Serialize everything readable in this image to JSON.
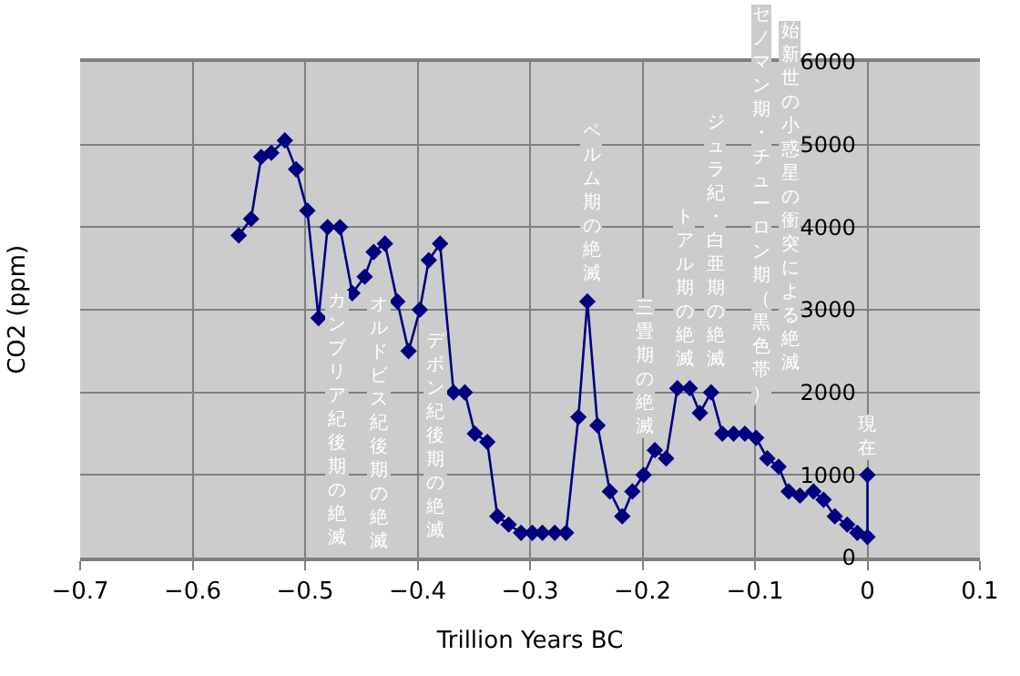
{
  "chart_data": {
    "type": "line",
    "xlabel": "Trillion Years BC",
    "ylabel": "CO2 (ppm)",
    "xlim": [
      -0.7,
      0.1
    ],
    "xticks": [
      -0.7,
      -0.6,
      -0.5,
      -0.4,
      -0.3,
      -0.2,
      -0.1,
      0,
      0.1
    ],
    "ylim": [
      0,
      6000
    ],
    "yticks": [
      0,
      1000,
      2000,
      3000,
      4000,
      5000,
      6000
    ],
    "grid": true,
    "marker": "diamond",
    "line_style": "solid",
    "series": [
      {
        "color": "#000080",
        "x": [
          -0.559,
          -0.548,
          -0.539,
          -0.53,
          -0.518,
          -0.508,
          -0.498,
          -0.488,
          -0.48,
          -0.469,
          -0.458,
          -0.447,
          -0.439,
          -0.429,
          -0.418,
          -0.408,
          -0.398,
          -0.39,
          -0.38,
          -0.368,
          -0.358,
          -0.349,
          -0.338,
          -0.329,
          -0.319,
          -0.308,
          -0.298,
          -0.289,
          -0.278,
          -0.268,
          -0.257,
          -0.249,
          -0.24,
          -0.229,
          -0.218,
          -0.209,
          -0.199,
          -0.189,
          -0.179,
          -0.169,
          -0.158,
          -0.149,
          -0.139,
          -0.129,
          -0.119,
          -0.109,
          -0.099,
          -0.089,
          -0.079,
          -0.07,
          -0.06,
          -0.048,
          -0.039,
          -0.029,
          -0.018,
          -0.009,
          0,
          0
        ],
        "values": [
          3900,
          4100,
          4850,
          4900,
          5050,
          4700,
          4200,
          2900,
          4000,
          4000,
          3200,
          3400,
          3700,
          3800,
          3100,
          2500,
          3000,
          3600,
          3800,
          2000,
          2000,
          1500,
          1400,
          500,
          400,
          300,
          300,
          300,
          300,
          300,
          1700,
          3100,
          1600,
          800,
          500,
          800,
          1000,
          1300,
          1200,
          2050,
          2050,
          1750,
          2000,
          1500,
          1500,
          1500,
          1450,
          1200,
          1100,
          800,
          750,
          800,
          700,
          500,
          400,
          300,
          250,
          1000
        ]
      }
    ],
    "annotations": [
      "カンブリア紀後期の絶滅",
      "オルドビス紀後期の絶滅",
      "デボン紀後期の絶滅",
      "ペルム期の絶滅",
      "三畳期の絶滅",
      "トアル期の絶滅",
      "ジュラ紀・白亜期の絶滅",
      "セノマン期・チューロン期（黒色帯）",
      "始新世の小惑星の衝突による絶滅",
      "現在"
    ]
  }
}
